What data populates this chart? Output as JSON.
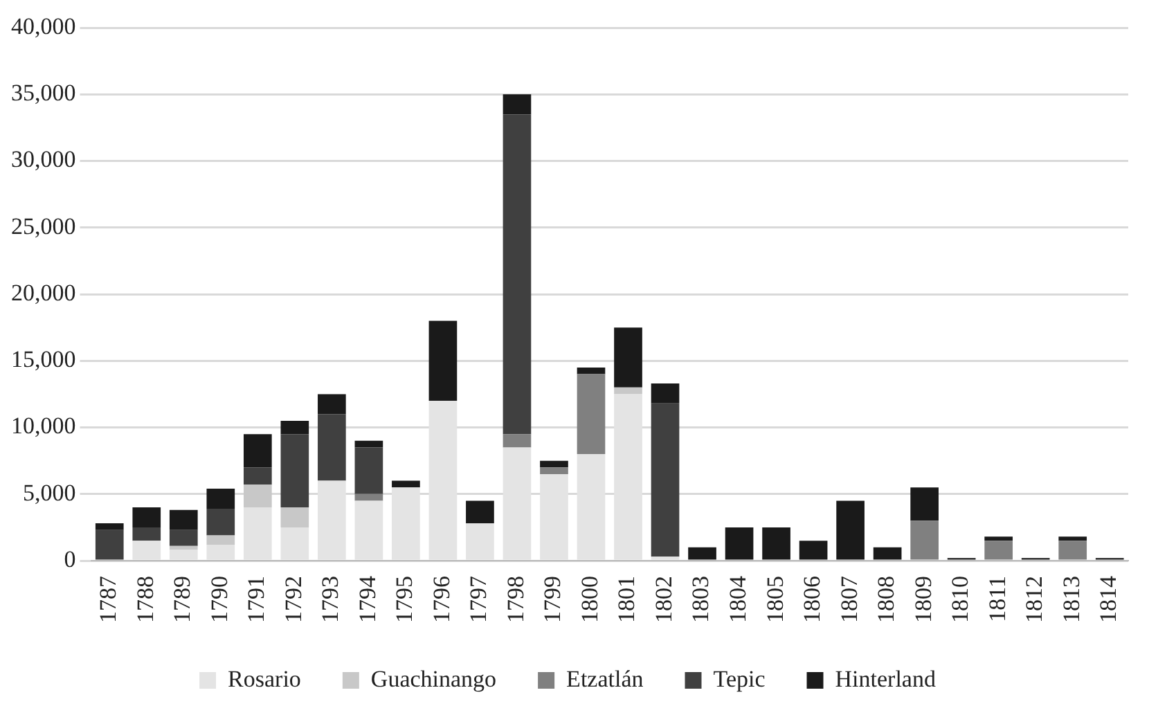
{
  "chart_data": {
    "type": "bar",
    "stacked": true,
    "categories": [
      "1787",
      "1788",
      "1789",
      "1790",
      "1791",
      "1792",
      "1793",
      "1794",
      "1795",
      "1796",
      "1797",
      "1798",
      "1799",
      "1800",
      "1801",
      "1802",
      "1803",
      "1804",
      "1805",
      "1806",
      "1807",
      "1808",
      "1809",
      "1810",
      "1811",
      "1812",
      "1813",
      "1814"
    ],
    "series": [
      {
        "name": "Rosario",
        "color": "#e4e4e4",
        "values": [
          null,
          1500,
          800,
          1200,
          4000,
          2500,
          6000,
          4500,
          5500,
          12000,
          2800,
          8500,
          6500,
          8000,
          12500,
          300,
          0,
          0,
          0,
          0,
          0,
          0,
          0,
          0,
          0,
          0,
          0,
          0
        ]
      },
      {
        "name": "Guachinango",
        "color": "#c8c8c8",
        "values": [
          0,
          0,
          300,
          700,
          1700,
          1500,
          0,
          0,
          0,
          0,
          0,
          0,
          0,
          0,
          500,
          0,
          0,
          0,
          0,
          0,
          0,
          0,
          0,
          0,
          0,
          0,
          0,
          0
        ]
      },
      {
        "name": "Etzatlán",
        "color": "#808080",
        "values": [
          0,
          0,
          0,
          0,
          0,
          0,
          0,
          500,
          0,
          0,
          0,
          1000,
          500,
          6000,
          0,
          0,
          0,
          0,
          0,
          0,
          0,
          0,
          3000,
          0,
          1500,
          0,
          1500,
          0
        ]
      },
      {
        "name": "Tepic",
        "color": "#404040",
        "values": [
          2300,
          1000,
          1200,
          2000,
          1300,
          5500,
          5000,
          3500,
          0,
          0,
          0,
          24000,
          0,
          0,
          0,
          11500,
          0,
          0,
          0,
          0,
          0,
          0,
          0,
          0,
          0,
          0,
          0,
          0
        ]
      },
      {
        "name": "Hinterland",
        "color": "#1a1a1a",
        "values": [
          500,
          1500,
          1500,
          1500,
          2500,
          1000,
          1500,
          500,
          500,
          6000,
          1700,
          1500,
          500,
          500,
          4500,
          1500,
          1000,
          2500,
          2500,
          1500,
          4500,
          1000,
          2500,
          200,
          300,
          200,
          300,
          200
        ]
      }
    ],
    "ylim": [
      0,
      40000
    ],
    "yticks": [
      {
        "value": 0,
        "label": "0"
      },
      {
        "value": 5000,
        "label": "5,000"
      },
      {
        "value": 10000,
        "label": "10,000"
      },
      {
        "value": 15000,
        "label": "15,000"
      },
      {
        "value": 20000,
        "label": "20,000"
      },
      {
        "value": 25000,
        "label": "25,000"
      },
      {
        "value": 30000,
        "label": "30,000"
      },
      {
        "value": 35000,
        "label": "35,000"
      },
      {
        "value": 40000,
        "label": "40,000"
      }
    ],
    "grid": "y",
    "legend": "bottom"
  }
}
